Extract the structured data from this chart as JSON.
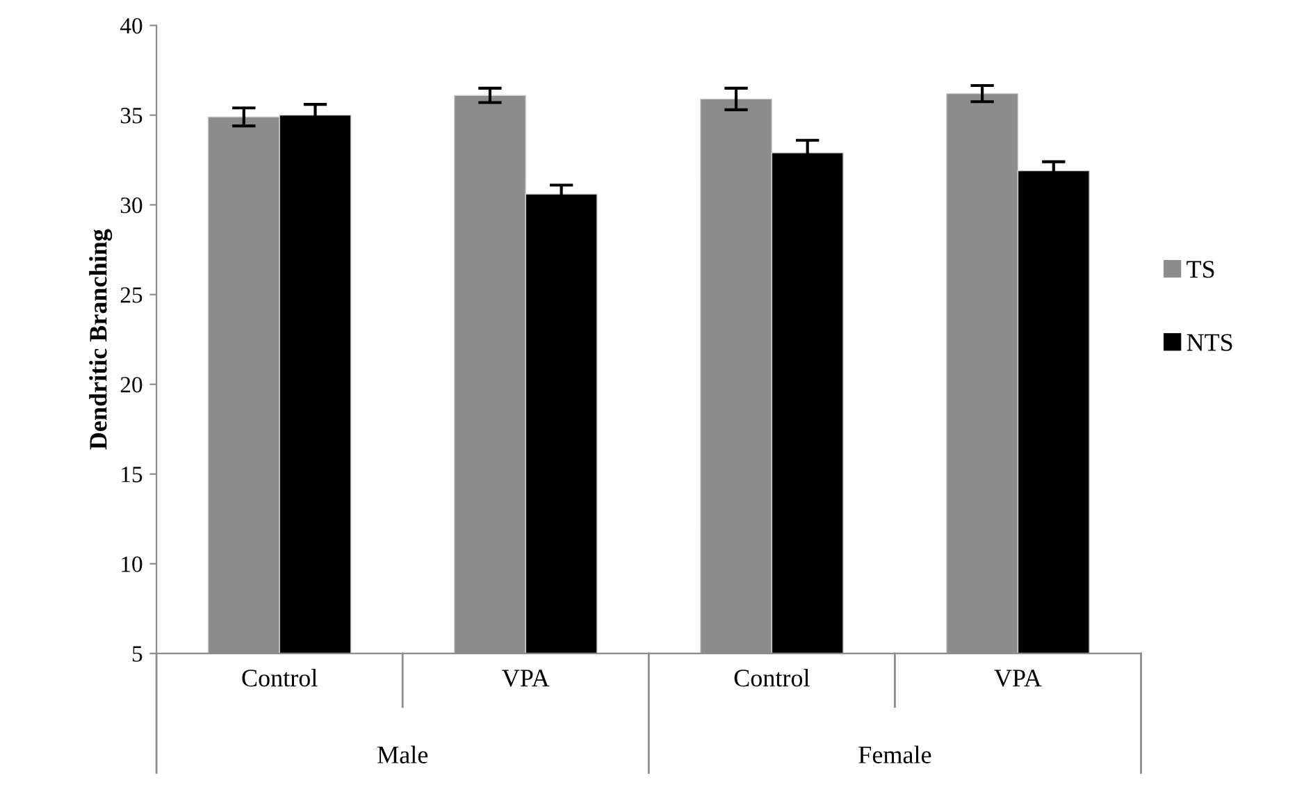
{
  "chart_data": {
    "type": "bar",
    "ylabel": "Dendritic Branching",
    "categories": [
      "Control",
      "VPA",
      "Control",
      "VPA"
    ],
    "series": [
      {
        "name": "TS",
        "color": "#8c8c8c",
        "values": [
          34.9,
          36.1,
          35.9,
          36.2
        ],
        "errors": [
          0.5,
          0.4,
          0.6,
          0.45
        ]
      },
      {
        "name": "NTS",
        "color": "#000000",
        "values": [
          35.0,
          30.6,
          32.9,
          31.9
        ],
        "errors": [
          0.6,
          0.5,
          0.7,
          0.5
        ]
      }
    ],
    "annotations": [
      "Male",
      "Female"
    ],
    "ylim": [
      5,
      40
    ],
    "yticks": [
      5,
      10,
      15,
      20,
      25,
      30,
      35,
      40
    ],
    "grid": false,
    "legend": "right"
  }
}
